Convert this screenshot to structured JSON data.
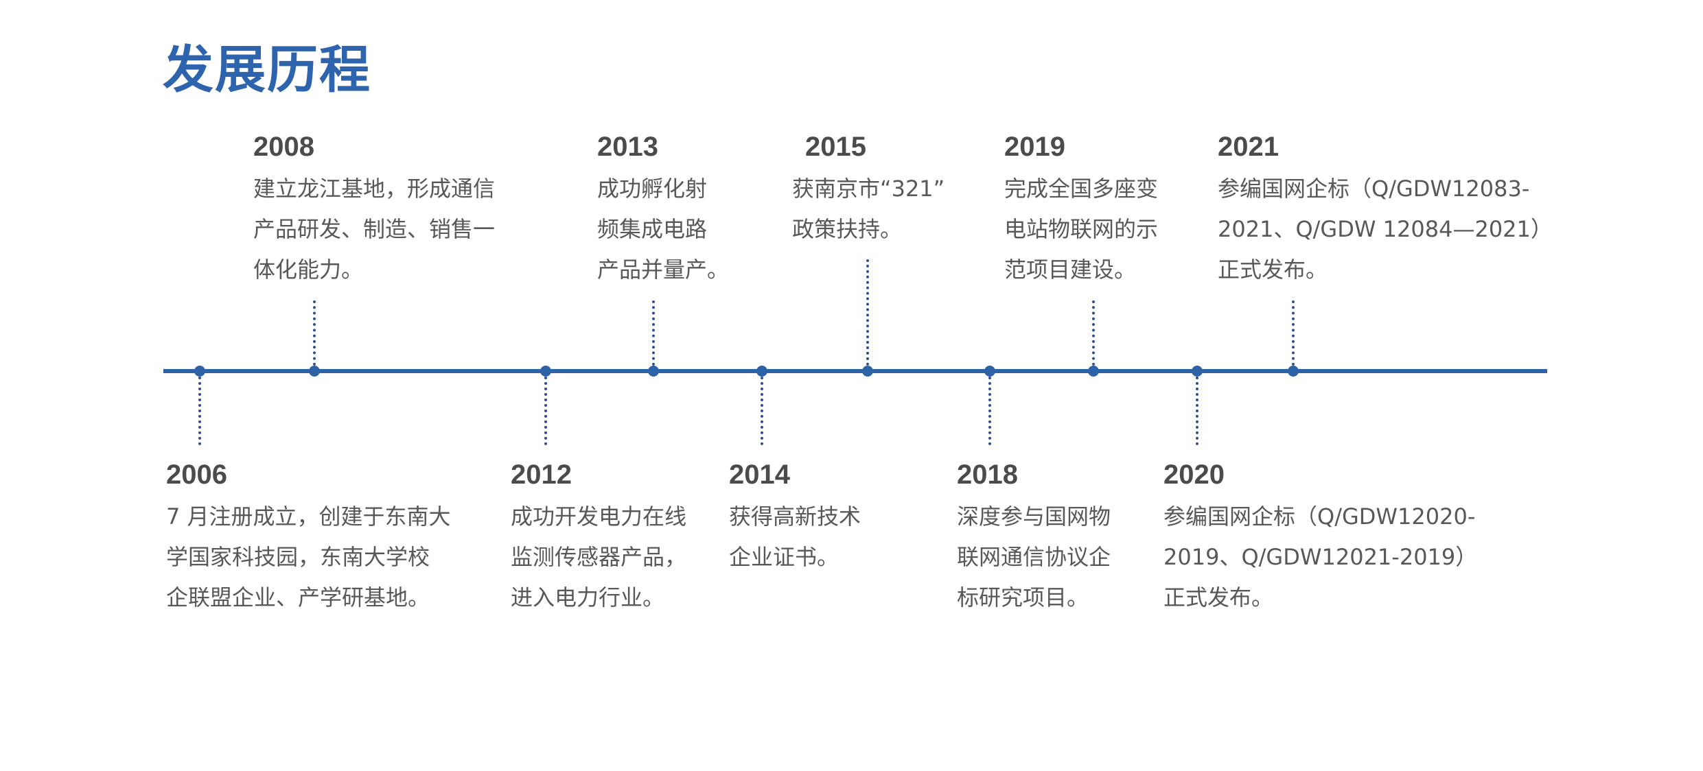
{
  "title": "发展历程",
  "colors": {
    "accent": "#2e64ad",
    "text": "#585858",
    "year": "#4b4b4b"
  },
  "events": [
    {
      "year": "2006",
      "position": "below",
      "lines": [
        "7 月注册成立，创建于东南大",
        "学国家科技园，东南大学校",
        "企联盟企业、产学研基地。"
      ]
    },
    {
      "year": "2008",
      "position": "above",
      "lines": [
        "建立龙江基地，形成通信",
        "产品研发、制造、销售一",
        "体化能力。"
      ]
    },
    {
      "year": "2012",
      "position": "below",
      "lines": [
        "成功开发电力在线",
        "监测传感器产品，",
        "进入电力行业。"
      ]
    },
    {
      "year": "2013",
      "position": "above",
      "lines": [
        "成功孵化射",
        "频集成电路",
        "产品并量产。"
      ]
    },
    {
      "year": "2014",
      "position": "below",
      "lines": [
        "获得高新技术",
        "企业证书。"
      ]
    },
    {
      "year": "2015",
      "position": "above",
      "lines": [
        "获南京市“321”",
        "政策扶持。"
      ]
    },
    {
      "year": "2018",
      "position": "below",
      "lines": [
        "深度参与国网物",
        "联网通信协议企",
        "标研究项目。"
      ]
    },
    {
      "year": "2019",
      "position": "above",
      "lines": [
        "完成全国多座变",
        "电站物联网的示",
        "范项目建设。"
      ]
    },
    {
      "year": "2020",
      "position": "below",
      "lines": [
        "参编国网企标（Q/GDW12020-",
        "2019、Q/GDW12021-2019）",
        "正式发布。"
      ]
    },
    {
      "year": "2021",
      "position": "above",
      "lines": [
        "参编国网企标（Q/GDW12083-",
        "2021、Q/GDW 12084—2021）",
        "正式发布。"
      ]
    }
  ]
}
